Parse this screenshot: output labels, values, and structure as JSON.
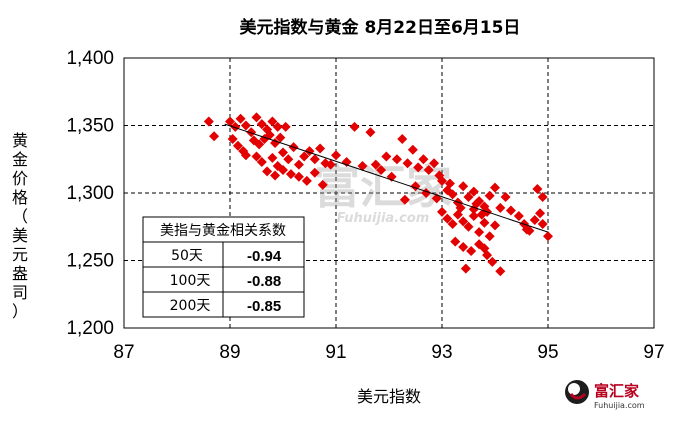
{
  "chart_data": {
    "type": "scatter",
    "title": "美元指数与黄金 8月22日至6月15日",
    "xlabel": "美元指数",
    "ylabel": "黄金价格（美元/盎司）",
    "ylabel_chars": [
      "黄",
      "金",
      "价",
      "格",
      "（",
      "美",
      "元",
      "盎",
      "司",
      "）"
    ],
    "xlim": [
      87,
      97
    ],
    "ylim": [
      1200,
      1400
    ],
    "xticks": [
      87,
      89,
      91,
      93,
      95,
      97
    ],
    "xtick_labels": [
      "87",
      "89",
      "91",
      "93",
      "95",
      "97"
    ],
    "yticks": [
      1200,
      1250,
      1300,
      1350,
      1400
    ],
    "ytick_labels": [
      "1,200",
      "1,250",
      "1,300",
      "1,350",
      "1,400"
    ],
    "grid": true,
    "marker_color": "#e30000",
    "trendline": {
      "x": [
        88.9,
        95.0
      ],
      "y": [
        1351,
        1271
      ]
    },
    "series": [
      {
        "points": [
          [
            88.6,
            1353
          ],
          [
            88.7,
            1342
          ],
          [
            89.0,
            1353
          ],
          [
            89.1,
            1349
          ],
          [
            89.2,
            1355
          ],
          [
            89.3,
            1350
          ],
          [
            89.4,
            1345
          ],
          [
            89.5,
            1356
          ],
          [
            89.6,
            1351
          ],
          [
            89.7,
            1347
          ],
          [
            89.8,
            1353
          ],
          [
            89.9,
            1349
          ],
          [
            89.05,
            1340
          ],
          [
            89.15,
            1335
          ],
          [
            89.25,
            1331
          ],
          [
            89.45,
            1339
          ],
          [
            89.55,
            1336
          ],
          [
            89.65,
            1340
          ],
          [
            89.75,
            1343
          ],
          [
            89.85,
            1337
          ],
          [
            89.95,
            1341
          ],
          [
            90.05,
            1349
          ],
          [
            89.3,
            1328
          ],
          [
            89.5,
            1327
          ],
          [
            89.6,
            1323
          ],
          [
            89.8,
            1326
          ],
          [
            89.9,
            1320
          ],
          [
            90.0,
            1330
          ],
          [
            90.1,
            1325
          ],
          [
            90.2,
            1334
          ],
          [
            90.3,
            1321
          ],
          [
            90.4,
            1327
          ],
          [
            90.5,
            1331
          ],
          [
            90.6,
            1325
          ],
          [
            90.7,
            1333
          ],
          [
            90.8,
            1322
          ],
          [
            89.7,
            1316
          ],
          [
            89.85,
            1313
          ],
          [
            90.0,
            1317
          ],
          [
            90.15,
            1314
          ],
          [
            90.3,
            1312
          ],
          [
            90.45,
            1309
          ],
          [
            90.6,
            1315
          ],
          [
            90.75,
            1306
          ],
          [
            90.9,
            1321
          ],
          [
            91.0,
            1328
          ],
          [
            91.2,
            1323
          ],
          [
            91.35,
            1349
          ],
          [
            91.5,
            1320
          ],
          [
            91.65,
            1345
          ],
          [
            91.75,
            1321
          ],
          [
            91.85,
            1317
          ],
          [
            91.95,
            1327
          ],
          [
            92.05,
            1312
          ],
          [
            92.15,
            1325
          ],
          [
            92.25,
            1340
          ],
          [
            92.35,
            1322
          ],
          [
            92.45,
            1332
          ],
          [
            92.55,
            1319
          ],
          [
            92.65,
            1325
          ],
          [
            92.75,
            1317
          ],
          [
            92.85,
            1322
          ],
          [
            92.95,
            1313
          ],
          [
            92.3,
            1295
          ],
          [
            92.5,
            1305
          ],
          [
            92.7,
            1300
          ],
          [
            92.9,
            1296
          ],
          [
            93.0,
            1309
          ],
          [
            93.1,
            1302
          ],
          [
            93.2,
            1299
          ],
          [
            93.3,
            1293
          ],
          [
            93.4,
            1305
          ],
          [
            93.5,
            1297
          ],
          [
            93.6,
            1301
          ],
          [
            93.7,
            1294
          ],
          [
            93.8,
            1290
          ],
          [
            93.9,
            1298
          ],
          [
            94.0,
            1304
          ],
          [
            94.1,
            1289
          ],
          [
            94.2,
            1297
          ],
          [
            93.0,
            1286
          ],
          [
            93.1,
            1281
          ],
          [
            93.2,
            1277
          ],
          [
            93.3,
            1284
          ],
          [
            93.4,
            1279
          ],
          [
            93.5,
            1275
          ],
          [
            93.6,
            1283
          ],
          [
            93.7,
            1271
          ],
          [
            93.8,
            1278
          ],
          [
            93.9,
            1268
          ],
          [
            94.0,
            1276
          ],
          [
            93.25,
            1264
          ],
          [
            93.4,
            1260
          ],
          [
            93.55,
            1257
          ],
          [
            93.7,
            1262
          ],
          [
            93.85,
            1254
          ],
          [
            93.95,
            1249
          ],
          [
            93.45,
            1244
          ],
          [
            94.1,
            1242
          ],
          [
            93.8,
            1259
          ],
          [
            94.3,
            1287
          ],
          [
            94.45,
            1283
          ],
          [
            94.55,
            1277
          ],
          [
            94.65,
            1272
          ],
          [
            94.75,
            1280
          ],
          [
            94.85,
            1285
          ],
          [
            94.9,
            1277
          ],
          [
            95.0,
            1268
          ],
          [
            94.8,
            1303
          ],
          [
            94.9,
            1297
          ],
          [
            94.6,
            1273
          ],
          [
            93.15,
            1307
          ],
          [
            93.35,
            1289
          ],
          [
            93.65,
            1292
          ],
          [
            93.75,
            1284
          ],
          [
            93.6,
            1288
          ],
          [
            93.85,
            1286
          ]
        ]
      }
    ]
  },
  "corr_table": {
    "header": "美指与黄金相关系数",
    "rows": [
      {
        "period": "50天",
        "value": "-0.94"
      },
      {
        "period": "100天",
        "value": "-0.88"
      },
      {
        "period": "200天",
        "value": "-0.85"
      }
    ]
  },
  "watermark": {
    "cn": "富汇家",
    "en": "Fuhuijia.com"
  },
  "logo": {
    "text": "富汇家",
    "sub": "Fuhuijia.com"
  }
}
